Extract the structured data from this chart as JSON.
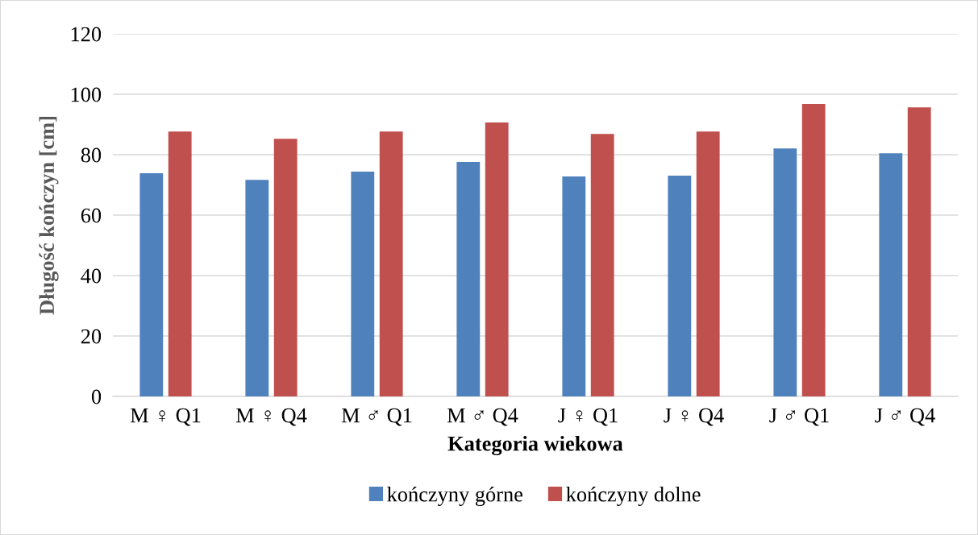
{
  "chart_data": {
    "type": "bar",
    "xlabel": "Kategoria wiekowa",
    "ylabel": "Długość kończyn [cm]",
    "categories": [
      "M ♀ Q1",
      "M ♀ Q4",
      "M ♂ Q1",
      "M ♂ Q4",
      "J ♀ Q1",
      "J ♀ Q4",
      "J ♂ Q1",
      "J ♂ Q4"
    ],
    "series": [
      {
        "name": "kończyny górne",
        "color": "#4f81bd",
        "values": [
          73.9,
          71.7,
          74.4,
          77.6,
          72.8,
          73.1,
          82.1,
          80.5
        ]
      },
      {
        "name": "kończyny dolne",
        "color": "#c0504d",
        "values": [
          87.7,
          85.3,
          87.7,
          90.7,
          86.9,
          87.7,
          96.8,
          95.7
        ]
      }
    ],
    "ylim": [
      0,
      120
    ],
    "yticks": [
      0,
      20,
      40,
      60,
      80,
      100,
      120
    ],
    "grid": "y",
    "legend": "bottom"
  }
}
